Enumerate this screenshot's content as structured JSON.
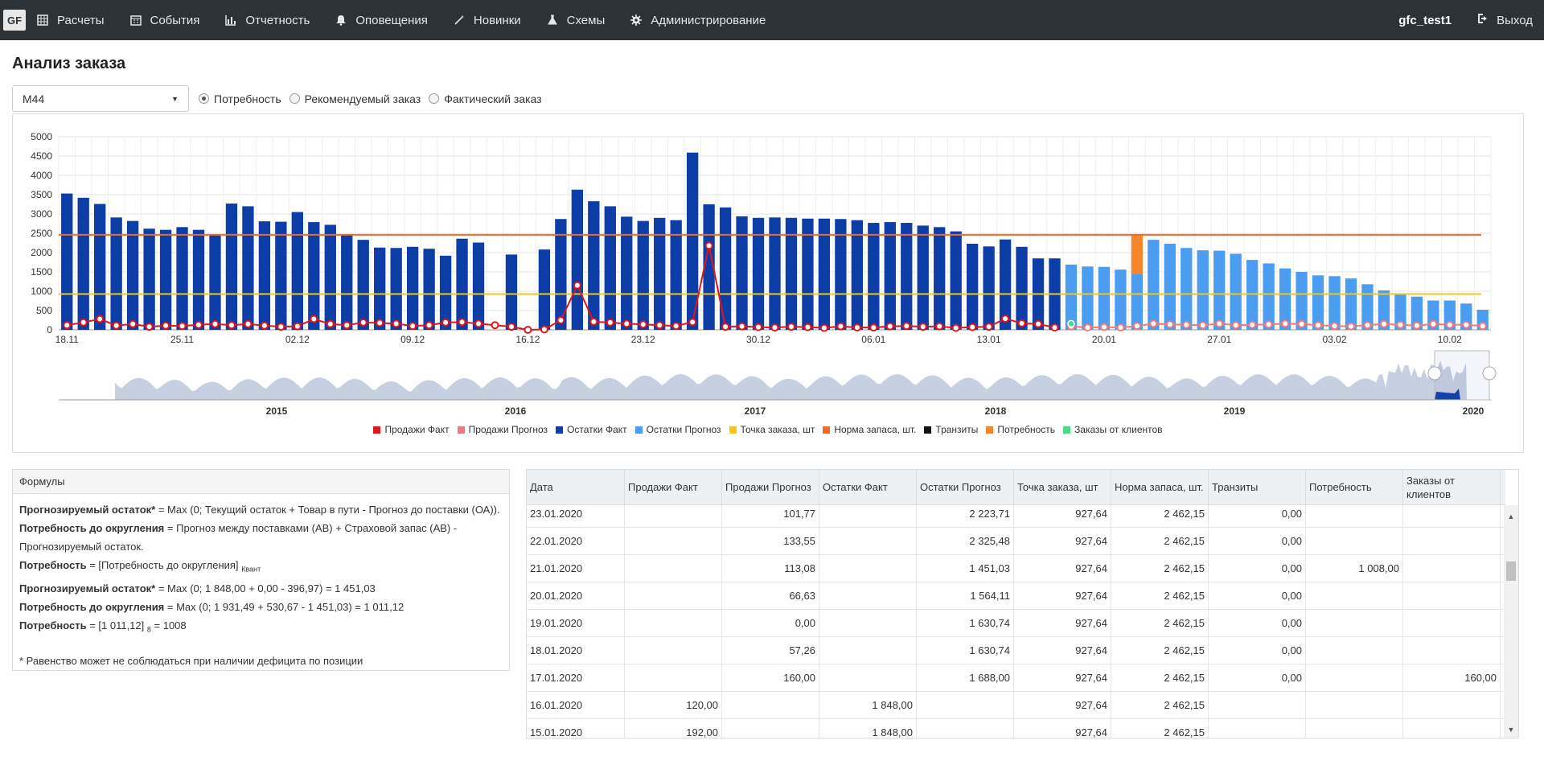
{
  "nav": {
    "logo": "GF",
    "items": [
      {
        "label": "Расчеты",
        "icon": "table-icon"
      },
      {
        "label": "События",
        "icon": "calendar-icon"
      },
      {
        "label": "Отчетность",
        "icon": "bar-chart-icon"
      },
      {
        "label": "Оповещения",
        "icon": "bell-icon"
      },
      {
        "label": "Новинки",
        "icon": "wand-icon"
      },
      {
        "label": "Схемы",
        "icon": "flask-icon"
      },
      {
        "label": "Администрирование",
        "icon": "gear-icon"
      }
    ],
    "user": "gfc_test1",
    "logout": "Выход"
  },
  "page": {
    "title": "Анализ заказа",
    "select_value": "M44",
    "radios": [
      {
        "label": "Потребность",
        "checked": true
      },
      {
        "label": "Рекомендуемый заказ",
        "checked": false
      },
      {
        "label": "Фактический заказ",
        "checked": false
      }
    ]
  },
  "colors": {
    "ostatki_fakt": "#0d3ea8",
    "ostatki_prognoz": "#4a9df0",
    "prodazhi_fakt": "#e0161b",
    "prodazhi_prognoz": "#f07a7a",
    "tochka_zakaza": "#f5c518",
    "norma_zapasa": "#f26b21",
    "tranzity": "#111111",
    "potrebnost": "#f5872a",
    "zakazy": "#4cd98a",
    "navigator": "#c7d0e0"
  },
  "chart_data": {
    "type": "bar",
    "ylim": [
      0,
      5000
    ],
    "y_ticks": [
      "0",
      "500",
      "1000",
      "1500",
      "2000",
      "2500",
      "3000",
      "3500",
      "4000",
      "4500",
      "5000"
    ],
    "x_ticks": [
      "18.11",
      "25.11",
      "02.12",
      "09.12",
      "16.12",
      "23.12",
      "30.12",
      "06.01",
      "13.01",
      "20.01",
      "27.01",
      "03.02",
      "10.02"
    ],
    "navigator_years": [
      "2015",
      "2016",
      "2017",
      "2018",
      "2019",
      "2020"
    ],
    "forecast_start_index": 60,
    "series": [
      {
        "name": "Остатки Факт",
        "values": [
          3530,
          3420,
          3260,
          2910,
          2820,
          2620,
          2590,
          2660,
          2590,
          2450,
          3270,
          3200,
          2810,
          2800,
          3050,
          2790,
          2720,
          2460,
          2330,
          2130,
          2120,
          2150,
          2100,
          1920,
          2360,
          2260,
          0,
          1950,
          0,
          2080,
          2870,
          3630,
          3330,
          3200,
          2930,
          2820,
          2900,
          2840,
          4590,
          3250,
          3170,
          2940,
          2900,
          2910,
          2900,
          2880,
          2880,
          2870,
          2840,
          2770,
          2790,
          2770,
          2700,
          2660,
          2550,
          2230,
          2160,
          2340,
          2150,
          1850,
          1850
        ]
      },
      {
        "name": "Остатки Прогноз",
        "values": [
          1690,
          1640,
          1630,
          1560,
          1450,
          2330,
          2230,
          2120,
          2060,
          2050,
          1970,
          1810,
          1720,
          1590,
          1500,
          1410,
          1390,
          1330,
          1180,
          1020,
          920,
          860,
          760,
          760,
          680,
          520
        ]
      },
      {
        "name": "Продажи Факт",
        "values": [
          120,
          192,
          280,
          110,
          150,
          80,
          110,
          100,
          130,
          150,
          120,
          150,
          110,
          80,
          90,
          280,
          150,
          120,
          190,
          180,
          160,
          100,
          120,
          190,
          200,
          160,
          120,
          80,
          0,
          10,
          250,
          1150,
          210,
          190,
          160,
          140,
          120,
          100,
          200,
          2180,
          80,
          90,
          70,
          60,
          80,
          70,
          50,
          90,
          60,
          60,
          90,
          100,
          80,
          90,
          50,
          70,
          80,
          290,
          170,
          150,
          60
        ]
      },
      {
        "name": "Продажи Прогноз",
        "values": [
          90,
          60,
          70,
          60,
          100,
          160,
          140,
          130,
          120,
          160,
          120,
          130,
          140,
          160,
          150,
          120,
          100,
          90,
          120,
          150,
          130,
          110,
          150,
          130,
          130,
          100
        ]
      },
      {
        "name": "Точка заказа, шт",
        "values": [
          927.64
        ]
      },
      {
        "name": "Норма запаса, шт.",
        "values": [
          2462.15
        ]
      },
      {
        "name": "Транзиты",
        "values": [
          0
        ]
      },
      {
        "name": "Потребность",
        "values": [
          1008
        ]
      },
      {
        "name": "Заказы от клиентов",
        "values": [
          160
        ]
      }
    ]
  },
  "formulas": {
    "header": "Формулы",
    "l1_b": "Прогнозируемый остаток*",
    "l1": " = Max (0; Текущий остаток + Товар в пути - Прогноз до поставки (ОА)).",
    "l2_b": "Потребность до округления",
    "l2": " = Прогноз между поставками (АВ) + Страховой запас (АВ) - Прогнозируемый остаток.",
    "l3_b": "Потребность",
    "l3": " = [Потребность до округления]",
    "l3_sub": "Квант",
    "l4_b": "Прогнозируемый остаток*",
    "l4": " = Max (0; 1 848,00 + 0,00 - 396,97) = 1 451,03",
    "l5_b": "Потребность до округления",
    "l5": " = Max (0; 1 931,49 + 530,67 - 1 451,03) = 1 011,12",
    "l6_b": "Потребность",
    "l6": " = [1 011,12]",
    "l6_sub": "8",
    "l6_tail": " = 1008",
    "note": "* Равенство может не соблюдаться при наличии дефицита по позиции"
  },
  "table": {
    "headers": [
      "Дата",
      "Продажи Факт",
      "Продажи Прогноз",
      "Остатки Факт",
      "Остатки Прогноз",
      "Точка заказа, шт",
      "Норма запаса, шт.",
      "Транзиты",
      "Потребность",
      "Заказы от клиентов"
    ],
    "rows": [
      [
        "23.01.2020",
        "",
        "101,77",
        "",
        "2 223,71",
        "927,64",
        "2 462,15",
        "0,00",
        "",
        ""
      ],
      [
        "22.01.2020",
        "",
        "133,55",
        "",
        "2 325,48",
        "927,64",
        "2 462,15",
        "0,00",
        "",
        ""
      ],
      [
        "21.01.2020",
        "",
        "113,08",
        "",
        "1 451,03",
        "927,64",
        "2 462,15",
        "0,00",
        "1 008,00",
        ""
      ],
      [
        "20.01.2020",
        "",
        "66,63",
        "",
        "1 564,11",
        "927,64",
        "2 462,15",
        "0,00",
        "",
        ""
      ],
      [
        "19.01.2020",
        "",
        "0,00",
        "",
        "1 630,74",
        "927,64",
        "2 462,15",
        "0,00",
        "",
        ""
      ],
      [
        "18.01.2020",
        "",
        "57,26",
        "",
        "1 630,74",
        "927,64",
        "2 462,15",
        "0,00",
        "",
        ""
      ],
      [
        "17.01.2020",
        "",
        "160,00",
        "",
        "1 688,00",
        "927,64",
        "2 462,15",
        "0,00",
        "",
        "160,00"
      ],
      [
        "16.01.2020",
        "120,00",
        "",
        "1 848,00",
        "",
        "927,64",
        "2 462,15",
        "",
        "",
        ""
      ],
      [
        "15.01.2020",
        "192,00",
        "",
        "1 848,00",
        "",
        "927,64",
        "2 462,15",
        "",
        "",
        ""
      ]
    ]
  }
}
